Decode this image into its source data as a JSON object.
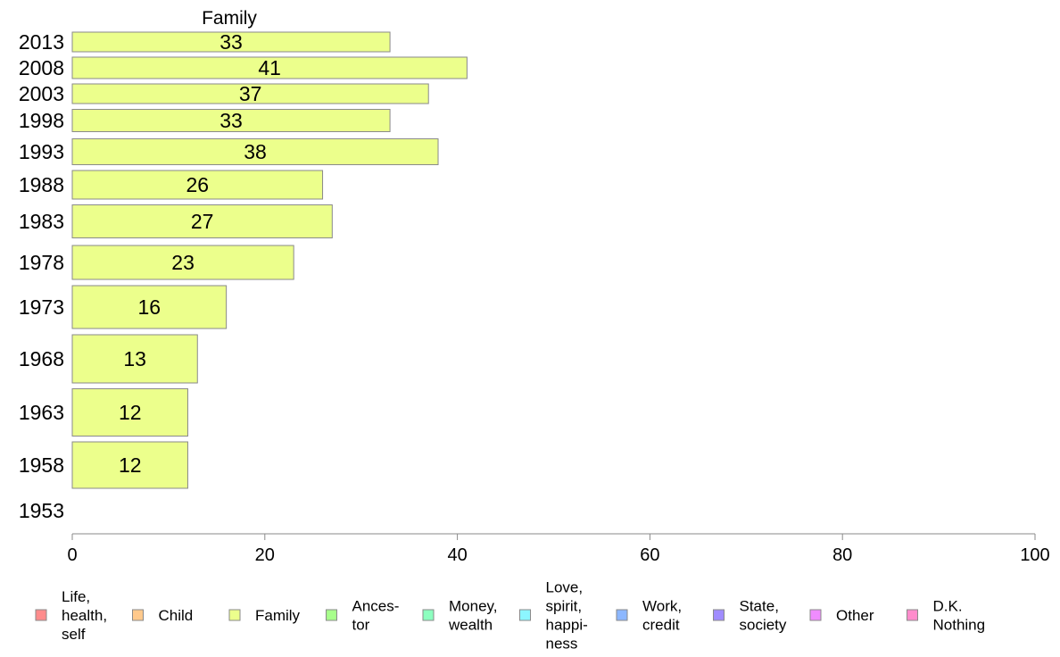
{
  "chart_data": {
    "type": "bar",
    "orientation": "horizontal",
    "title": "Family",
    "xlim": [
      0,
      100
    ],
    "xticks": [
      "0",
      "20",
      "40",
      "60",
      "80",
      "100"
    ],
    "grid": false,
    "legend_placement": "bottom",
    "categories": [
      "2013",
      "2008",
      "2003",
      "1998",
      "1993",
      "1988",
      "1983",
      "1978",
      "1973",
      "1968",
      "1963",
      "1958",
      "1953"
    ],
    "series": [
      {
        "name": "Family",
        "color": "#ecff8c",
        "values": [
          33,
          41,
          37,
          33,
          38,
          26,
          27,
          23,
          16,
          13,
          12,
          12,
          null
        ],
        "labels": [
          "33",
          "41",
          "37",
          "33",
          "38",
          "26",
          "27",
          "23",
          "16",
          "13",
          "12",
          "12",
          ""
        ]
      }
    ],
    "legend": [
      {
        "label": "Life,\nhealth,\nself",
        "color": "#ff8c8c"
      },
      {
        "label": "Child",
        "color": "#ffc98c"
      },
      {
        "label": "Family",
        "color": "#ecff8c"
      },
      {
        "label": "Ances-\ntor",
        "color": "#a8ff8c"
      },
      {
        "label": "Money,\nwealth",
        "color": "#8cffbf"
      },
      {
        "label": "Love,\nspirit,\nhappi-\nness",
        "color": "#8cf6ff"
      },
      {
        "label": "Work,\ncredit",
        "color": "#8cb7ff"
      },
      {
        "label": "State,\nsociety",
        "color": "#a08cff"
      },
      {
        "label": "Other",
        "color": "#f08cff"
      },
      {
        "label": "D.K.\nNothing",
        "color": "#ff8ccc"
      }
    ]
  }
}
